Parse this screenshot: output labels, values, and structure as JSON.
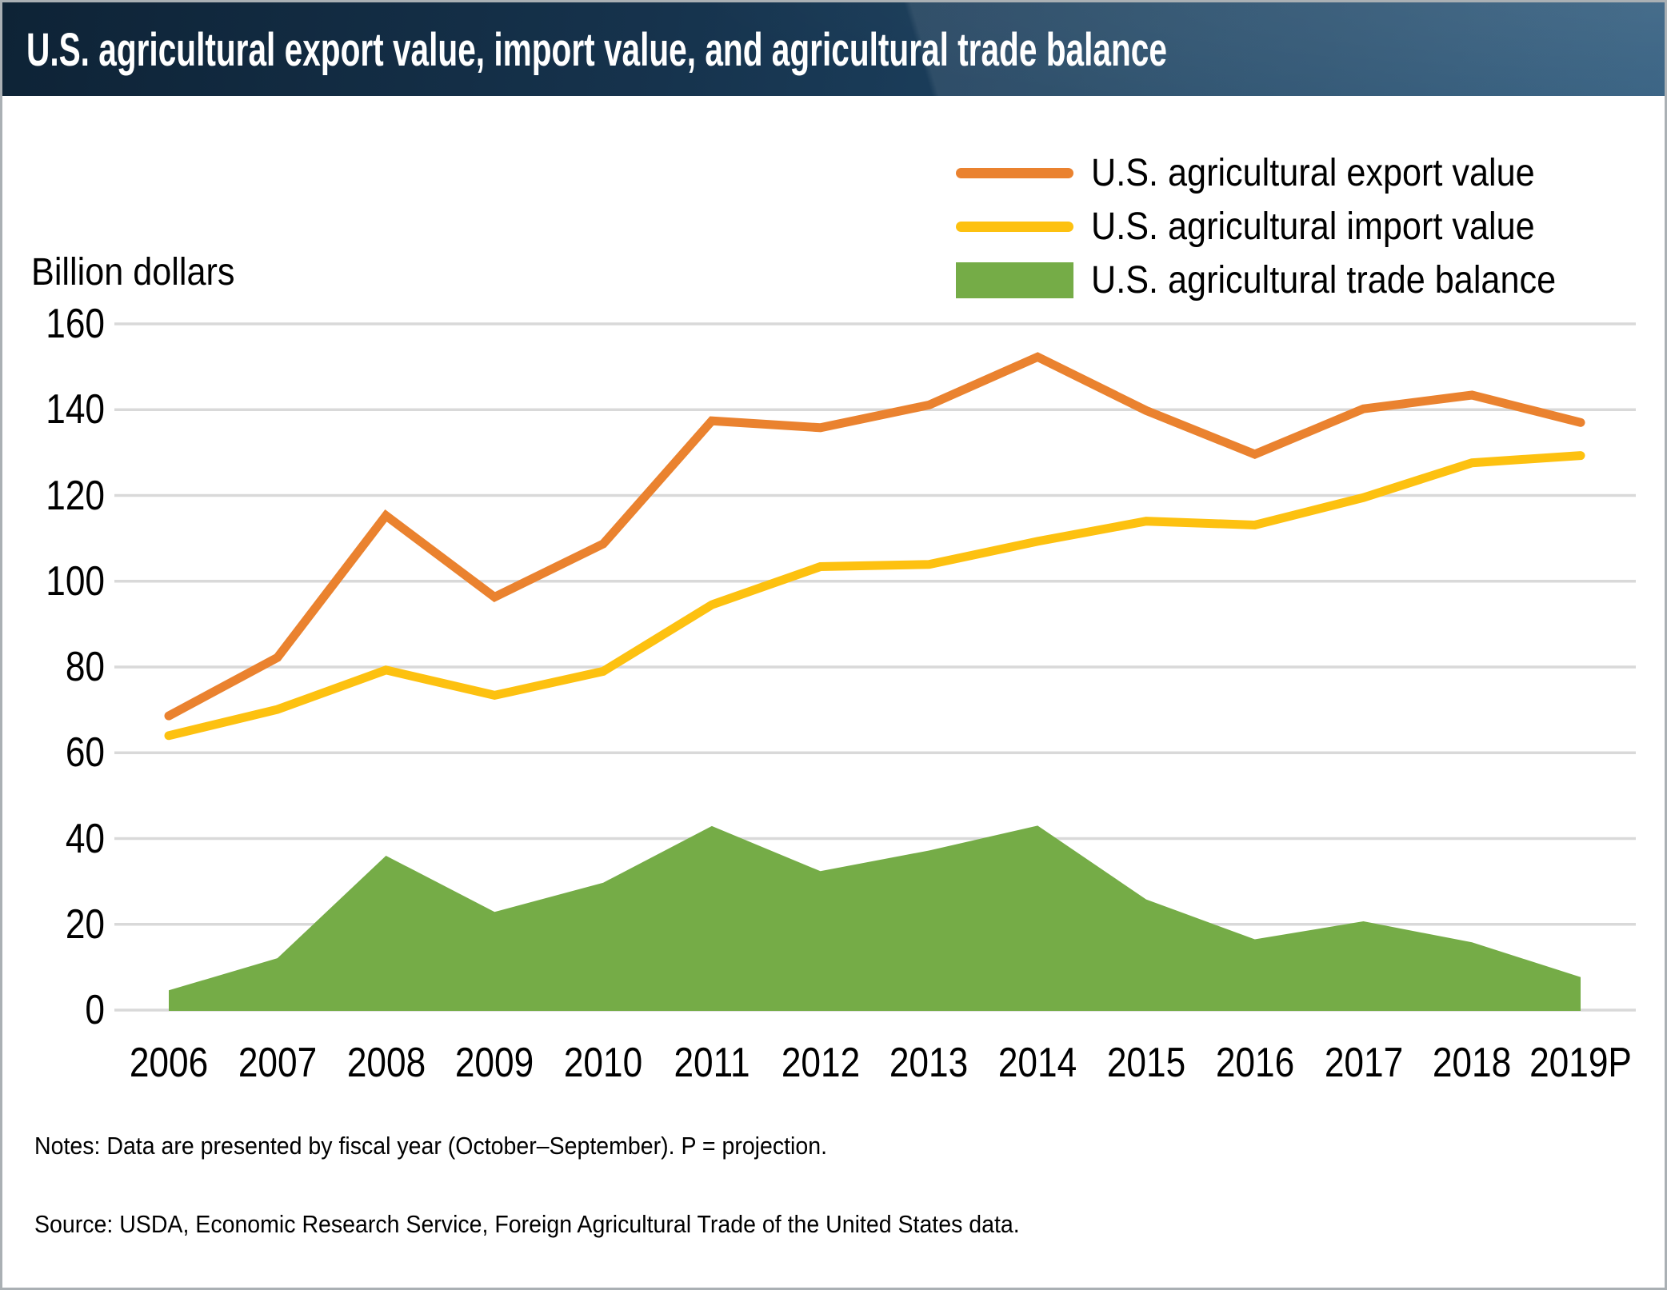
{
  "header": {
    "title": "U.S. agricultural export value, import value, and agricultural trade balance"
  },
  "legend": {
    "items": [
      {
        "label": "U.S. agricultural export value",
        "color": "#EA822F",
        "swatch": "line"
      },
      {
        "label": "U.S. agricultural import value",
        "color": "#FDC110",
        "swatch": "line"
      },
      {
        "label": "U.S. agricultural trade balance",
        "color": "#75AC47",
        "swatch": "area"
      }
    ]
  },
  "chart_data": {
    "type": "line",
    "title": "U.S. agricultural export value, import value, and agricultural trade balance",
    "ylabel": "Billion dollars",
    "xlabel": "",
    "x": [
      "2006",
      "2007",
      "2008",
      "2009",
      "2010",
      "2011",
      "2012",
      "2013",
      "2014",
      "2015",
      "2016",
      "2017",
      "2018",
      "2019P"
    ],
    "series": [
      {
        "name": "U.S. agricultural export value",
        "type": "line",
        "color": "#EA822F",
        "values": [
          68.6,
          82.2,
          115.3,
          96.3,
          108.7,
          137.4,
          135.8,
          141.1,
          152.3,
          139.8,
          129.6,
          140.2,
          143.4,
          137.0
        ]
      },
      {
        "name": "U.S. agricultural import value",
        "type": "line",
        "color": "#FDC110",
        "values": [
          64.0,
          70.1,
          79.3,
          73.4,
          79.0,
          94.5,
          103.4,
          103.9,
          109.3,
          114.0,
          113.1,
          119.5,
          127.6,
          129.3
        ]
      },
      {
        "name": "U.S. agricultural trade balance",
        "type": "area",
        "color": "#75AC47",
        "values": [
          4.6,
          12.1,
          36.0,
          22.9,
          29.7,
          42.9,
          32.4,
          37.2,
          43.0,
          25.8,
          16.5,
          20.7,
          15.8,
          7.7
        ]
      }
    ],
    "yticks": [
      0,
      20,
      40,
      60,
      80,
      100,
      120,
      140,
      160
    ],
    "ylim": [
      0,
      160
    ],
    "grid": true,
    "gridline_color": "#D9D9D9",
    "legend_position": "top-right"
  },
  "footer": {
    "notes": "Notes: Data are presented by fiscal year (October–September). P = projection.",
    "source": "Source: USDA, Economic Research Service, Foreign Agricultural Trade of the United States data."
  }
}
